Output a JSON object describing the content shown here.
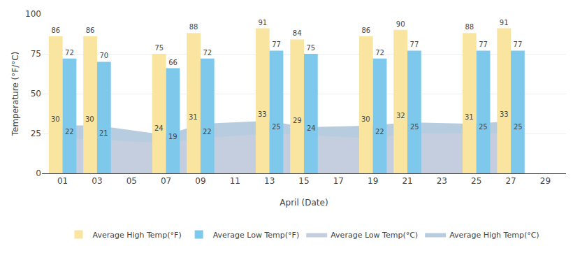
{
  "chart_data": {
    "type": "bar",
    "x": [
      1,
      3,
      7,
      9,
      13,
      15,
      19,
      21,
      25,
      27
    ],
    "series": [
      {
        "name": "Average High Temp(°F)",
        "type": "bar",
        "color": "#F9E4A0",
        "values": [
          86,
          86,
          75,
          88,
          91,
          84,
          86,
          90,
          88,
          91
        ]
      },
      {
        "name": "Average Low Temp(°F)",
        "type": "bar",
        "color": "#7DC8EB",
        "values": [
          72,
          70,
          66,
          72,
          77,
          75,
          72,
          77,
          77,
          77
        ]
      },
      {
        "name": "Average Low Temp(°C)",
        "type": "area",
        "color": "#C5CEDF",
        "values": [
          22,
          21,
          19,
          22,
          25,
          24,
          22,
          25,
          25,
          25
        ]
      },
      {
        "name": "Average High Temp(°C)",
        "type": "area",
        "color": "#B8CCDF",
        "values": [
          30,
          30,
          24,
          31,
          33,
          29,
          30,
          32,
          31,
          33
        ]
      }
    ],
    "xlabel": "April (Date)",
    "ylabel": "Temperature (°F/°C)",
    "xlim": [
      -0.2,
      30.2
    ],
    "ylim": [
      0,
      100
    ],
    "xticks": [
      {
        "value": 1,
        "label": "01"
      },
      {
        "value": 3,
        "label": "03"
      },
      {
        "value": 5,
        "label": "05"
      },
      {
        "value": 7,
        "label": "07"
      },
      {
        "value": 9,
        "label": "09"
      },
      {
        "value": 11,
        "label": "11"
      },
      {
        "value": 13,
        "label": "13"
      },
      {
        "value": 15,
        "label": "15"
      },
      {
        "value": 17,
        "label": "17"
      },
      {
        "value": 19,
        "label": "19"
      },
      {
        "value": 21,
        "label": "21"
      },
      {
        "value": 23,
        "label": "23"
      },
      {
        "value": 25,
        "label": "25"
      },
      {
        "value": 27,
        "label": "27"
      },
      {
        "value": 29,
        "label": "29"
      }
    ],
    "yticks": [
      0,
      25,
      50,
      75,
      100
    ],
    "grid": "y",
    "legend": "bottom",
    "data_labels": true
  }
}
